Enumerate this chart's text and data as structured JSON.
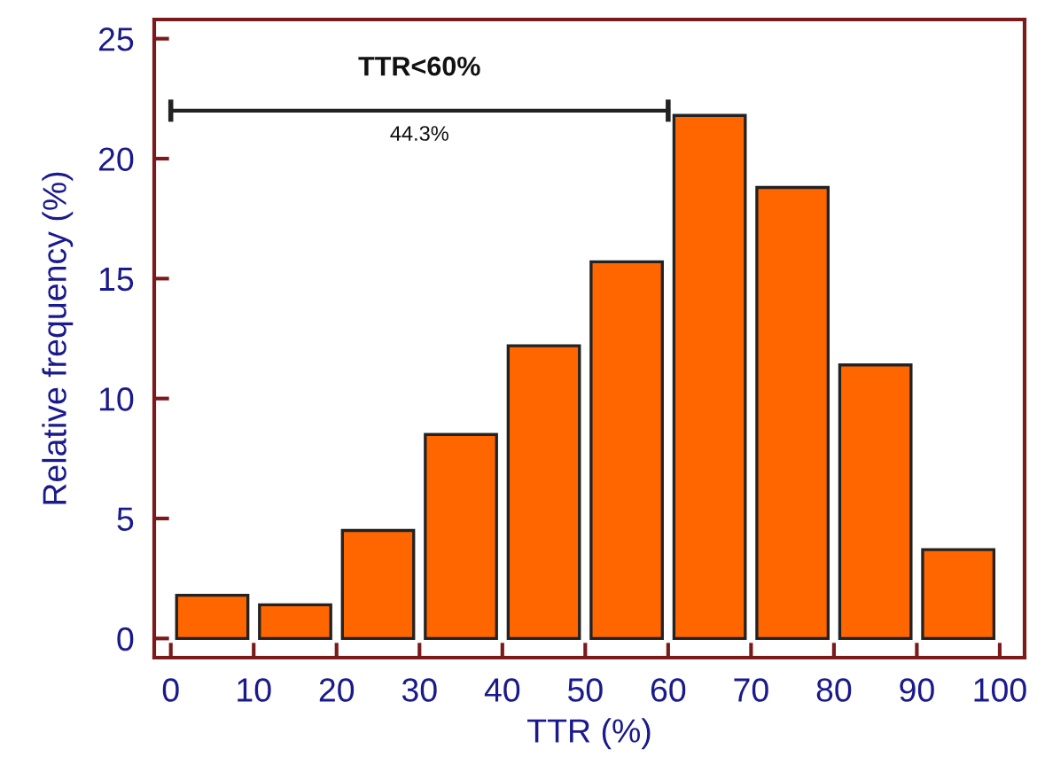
{
  "chart_data": {
    "type": "histogram",
    "xlabel": "TTR (%)",
    "ylabel": "Relative frequency (%)",
    "bins": [
      0,
      10,
      20,
      30,
      40,
      50,
      60,
      70,
      80,
      90,
      100
    ],
    "values": [
      1.8,
      1.4,
      4.5,
      8.5,
      12.2,
      15.7,
      21.8,
      18.8,
      11.4,
      3.7
    ],
    "color": "#ff6600",
    "xlim": [
      -2,
      103
    ],
    "ylim": [
      -0.8,
      25.8
    ],
    "xticks": [
      0,
      10,
      20,
      30,
      40,
      50,
      60,
      70,
      80,
      90,
      100
    ],
    "yticks": [
      0,
      5,
      10,
      15,
      20,
      25
    ],
    "series": [
      {
        "type": "line",
        "x": [
          0,
          60
        ],
        "values": [
          22,
          22
        ],
        "color": "#222222"
      }
    ],
    "annotations": [
      {
        "text": "TTR<60%",
        "x": 30,
        "y": 22
      },
      {
        "text": "44.3%",
        "x": 30,
        "y": 22
      }
    ],
    "grid": false,
    "legend": false
  }
}
